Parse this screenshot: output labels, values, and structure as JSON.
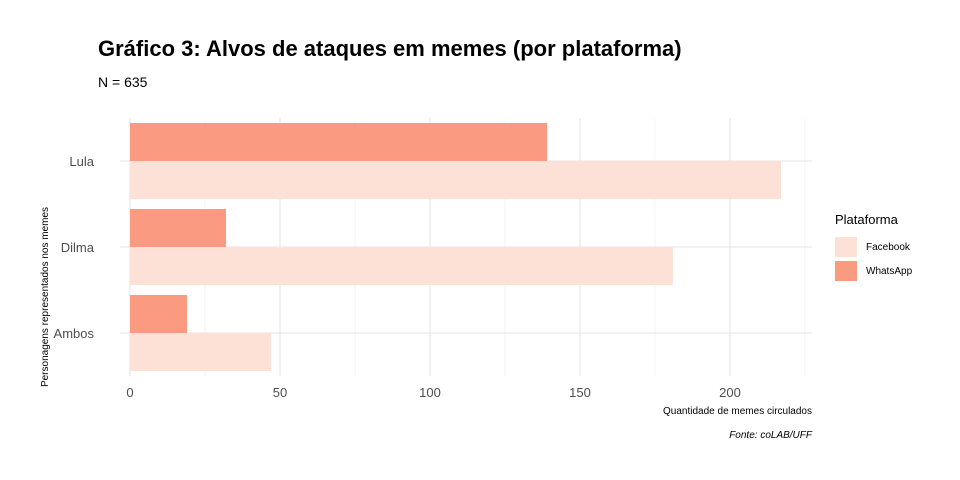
{
  "chart_data": {
    "type": "bar",
    "orientation": "horizontal",
    "title": "Gráfico 3: Alvos de ataques em memes (por plataforma)",
    "subtitle": "N = 635",
    "xlabel": "Quantidade de memes circulados",
    "ylabel": "Personagens representados nos memes",
    "caption": "Fonte: coLAB/UFF",
    "categories": [
      "Lula",
      "Dilma",
      "Ambos"
    ],
    "series": [
      {
        "name": "Facebook",
        "color": "#fde0d6",
        "values": [
          217,
          181,
          47
        ]
      },
      {
        "name": "WhatsApp",
        "color": "#fa9a80",
        "values": [
          139,
          32,
          19
        ]
      }
    ],
    "xlim": [
      0,
      227
    ],
    "xticks": [
      0,
      50,
      100,
      150,
      200
    ],
    "grid": true,
    "legend": {
      "title": "Plataforma",
      "position": "right"
    }
  }
}
